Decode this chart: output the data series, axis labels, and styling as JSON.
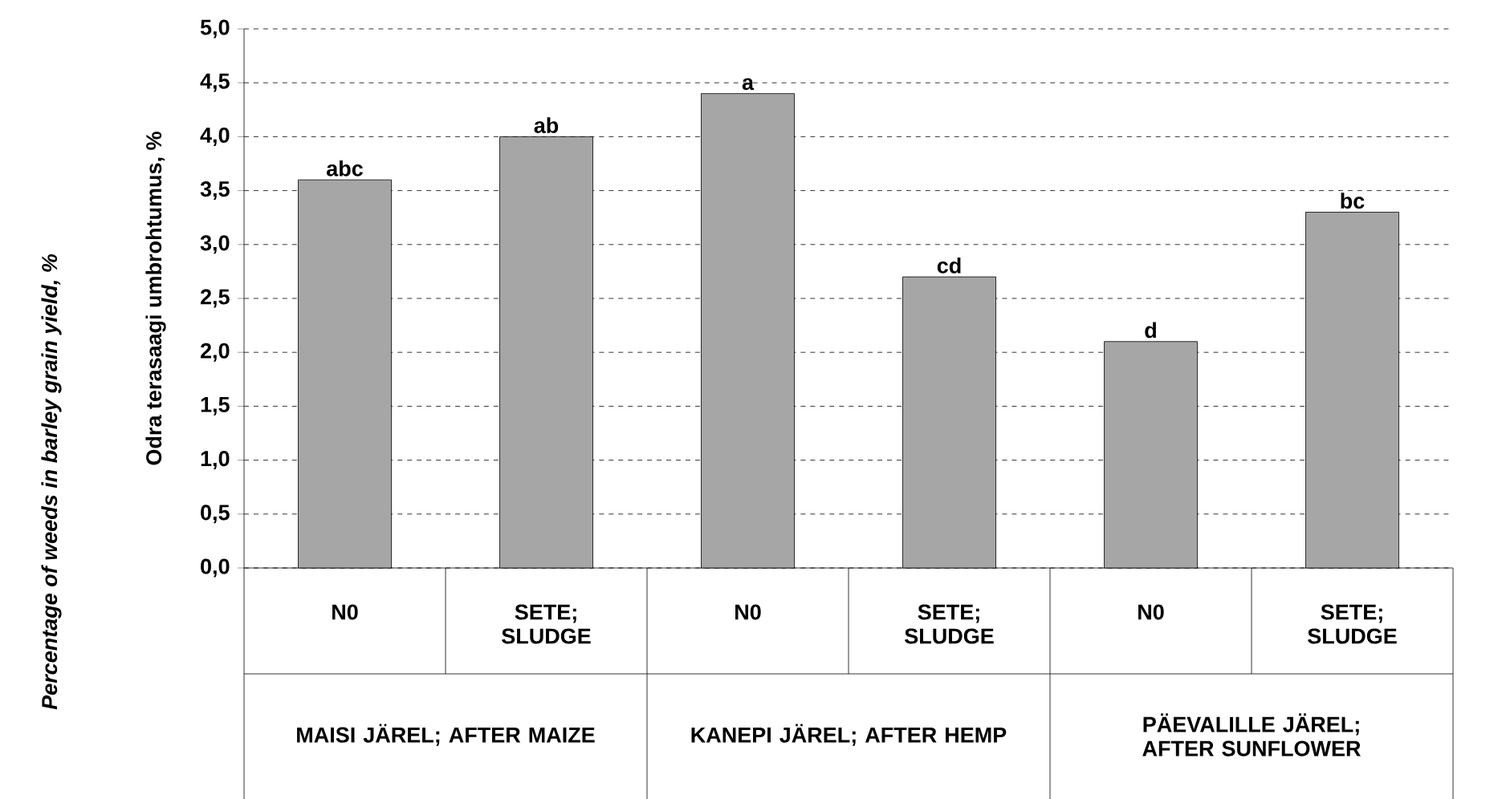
{
  "chart_data": {
    "type": "bar",
    "ylabel": "Odra terasaagi umbrohtumus, %",
    "categories": [
      "N0",
      "SETE; SLUDGE",
      "N0",
      "SETE; SLUDGE",
      "N0",
      "SETE; SLUDGE"
    ],
    "values": [
      3.6,
      4.0,
      4.4,
      2.7,
      2.1,
      3.3
    ],
    "value_labels": [
      "abc",
      "ab",
      "a",
      "cd",
      "d",
      "bc"
    ],
    "color": "#a6a6a6",
    "ylim": [
      0,
      5
    ],
    "yticks": [
      {
        "value": 0,
        "label": "0,0"
      },
      {
        "value": 0.5,
        "label": "0,5"
      },
      {
        "value": 1,
        "label": "1,0"
      },
      {
        "value": 1.5,
        "label": "1,5"
      },
      {
        "value": 2,
        "label": "2,0"
      },
      {
        "value": 2.5,
        "label": "2,5"
      },
      {
        "value": 3,
        "label": "3,0"
      },
      {
        "value": 3.5,
        "label": "3,5"
      },
      {
        "value": 4,
        "label": "4,0"
      },
      {
        "value": 4.5,
        "label": "4,5"
      },
      {
        "value": 5,
        "label": "5,0"
      }
    ],
    "grid": "y",
    "annotations": [
      "MAISI JÄREL; AFTER MAIZE",
      "KANEPI JÄREL; AFTER HEMP",
      "PÄEVALILLE JÄREL; AFTER SUNFLOWER",
      "*Percentage of weeds in barley grain yield, %*"
    ]
  }
}
